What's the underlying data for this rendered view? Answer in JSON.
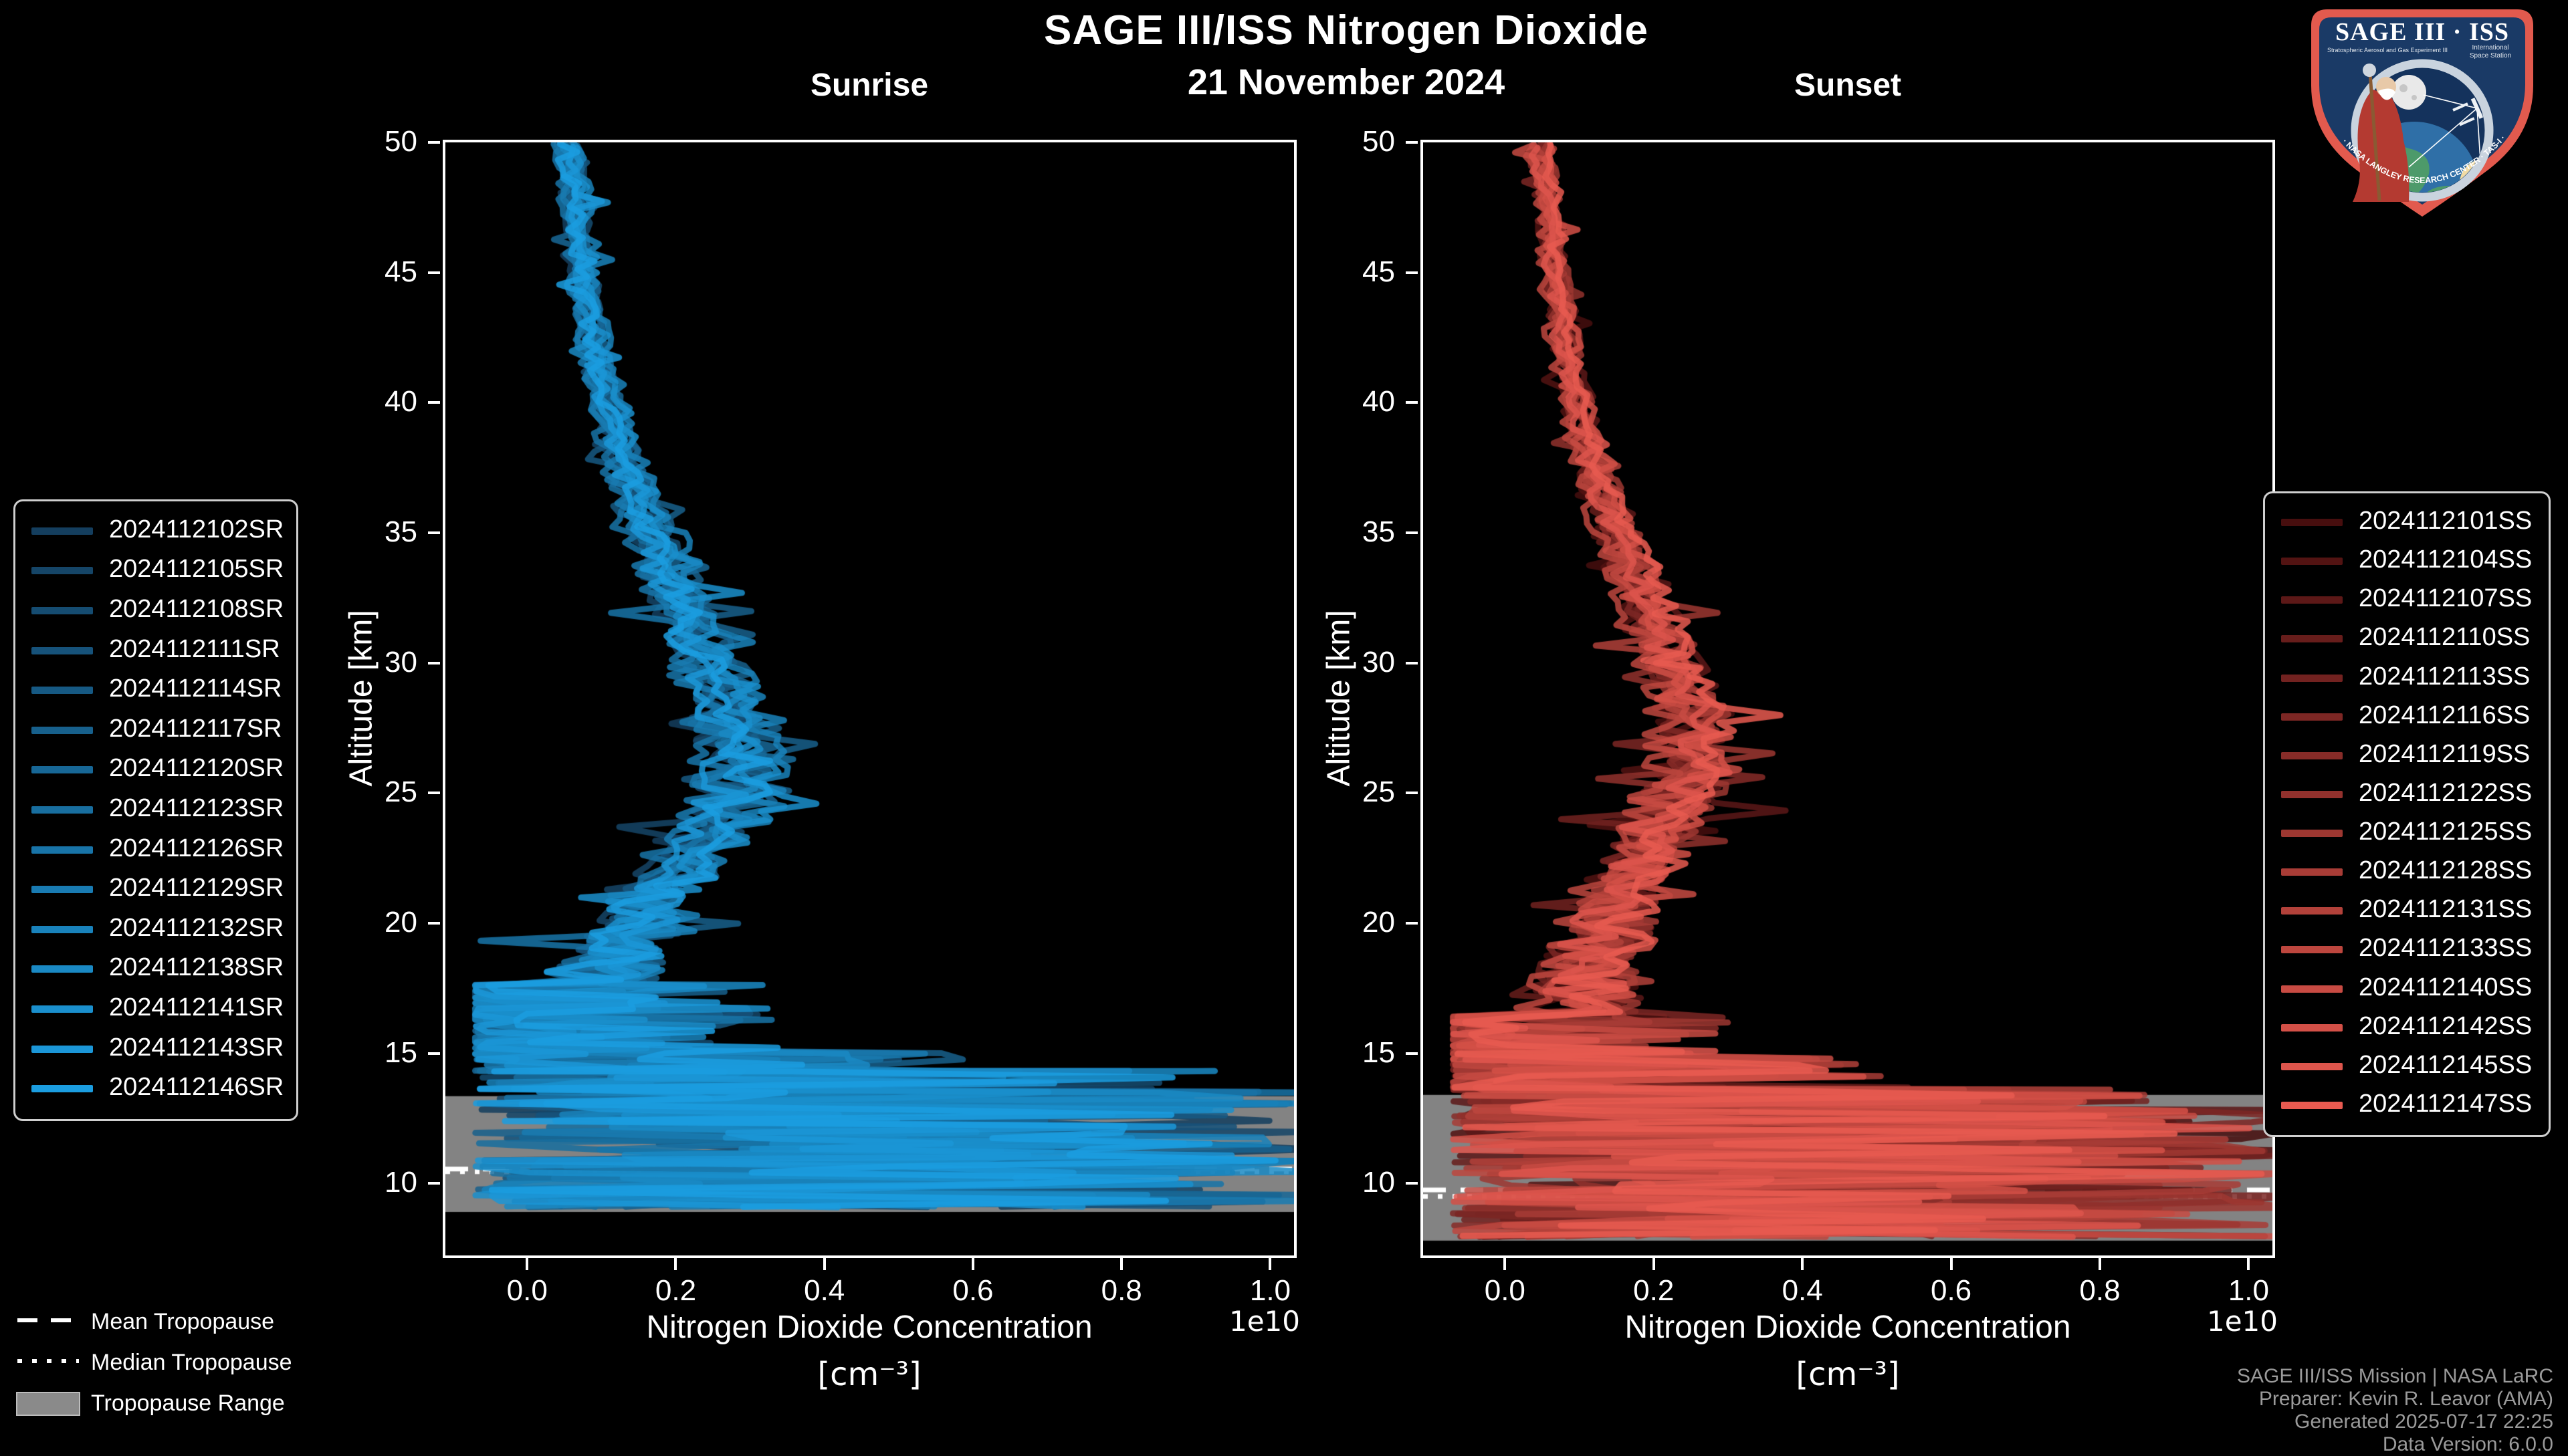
{
  "title": "SAGE III/ISS Nitrogen Dioxide",
  "date": "21 November 2024",
  "logo": {
    "title": "SAGE III · ISS",
    "subtitle_left": "Stratospheric Aerosol and Gas Experiment III",
    "subtitle_right_1": "International",
    "subtitle_right_2": "Space Station",
    "ring_text": "BALL · NASA LANGLEY RESEARCH CENTER · TAS-I · ESA"
  },
  "axes": {
    "xlabel": "Nitrogen Dioxide Concentration",
    "xunit": "[cm⁻³]",
    "offset_label": "1e10",
    "ylabel": "Altitude [km]",
    "xticks": [
      0.0,
      0.2,
      0.4,
      0.6,
      0.8,
      1.0
    ],
    "xtick_labels": [
      "0.0",
      "0.2",
      "0.4",
      "0.6",
      "0.8",
      "1.0"
    ],
    "yticks": [
      10,
      15,
      20,
      25,
      30,
      35,
      40,
      45,
      50
    ],
    "xlim": [
      -0.11,
      1.032
    ],
    "ylim": [
      7.23,
      50
    ],
    "grid": false
  },
  "tropopause_legend": [
    {
      "label": "Mean Tropopause",
      "style": "dashed"
    },
    {
      "label": "Median Tropopause",
      "style": "dotted"
    },
    {
      "label": "Tropopause Range",
      "style": "patch"
    }
  ],
  "attribution": [
    "SAGE III/ISS Mission | NASA LaRC",
    "Preparer: Kevin R. Leavor (AMA)",
    "Generated 2025-07-17 22:25",
    "Data Version: 6.0.0"
  ],
  "colors": {
    "background": "#000000",
    "spine": "#ffffff",
    "tropopause_band": "#838383",
    "tropopause_line": "#ffffff",
    "attribution_text": "#9a9a9a",
    "logo_border": "#e25a4e",
    "logo_field": "#1a3a66"
  },
  "chart_data": [
    {
      "type": "line",
      "title": "Sunrise",
      "legend_position": "left",
      "color_start": "#143e5e",
      "color_end": "#1b9de0",
      "series": [
        "2024112102SR",
        "2024112105SR",
        "2024112108SR",
        "2024112111SR",
        "2024112114SR",
        "2024112117SR",
        "2024112120SR",
        "2024112123SR",
        "2024112126SR",
        "2024112129SR",
        "2024112132SR",
        "2024112138SR",
        "2024112141SR",
        "2024112143SR",
        "2024112146SR"
      ],
      "mean_profile": {
        "altitude_km": [
          50,
          48,
          46,
          44,
          42,
          40,
          38,
          36,
          34,
          32,
          30,
          29,
          28,
          27,
          26,
          25,
          24,
          23,
          22,
          21,
          20,
          19,
          18,
          17.6
        ],
        "concentration_1e10": [
          0.055,
          0.062,
          0.068,
          0.078,
          0.09,
          0.105,
          0.125,
          0.15,
          0.18,
          0.21,
          0.24,
          0.255,
          0.27,
          0.285,
          0.29,
          0.285,
          0.26,
          0.23,
          0.2,
          0.17,
          0.15,
          0.125,
          0.105,
          0.1
        ]
      },
      "chaos_bands": [
        [
          17.6,
          15.2,
          0.34,
          3.0
        ],
        [
          15.2,
          14.3,
          0.6,
          2.2
        ],
        [
          14.3,
          13.5,
          0.95,
          1.8
        ],
        [
          13.5,
          8.9,
          1.07,
          1.25
        ]
      ],
      "tropopause": {
        "mean_km": 10.55,
        "median_km": 10.45,
        "range_km": [
          8.9,
          13.35
        ]
      }
    },
    {
      "type": "line",
      "title": "Sunset",
      "legend_position": "right",
      "color_start": "#470e0e",
      "color_end": "#e85a50",
      "series": [
        "2024112101SS",
        "2024112104SS",
        "2024112107SS",
        "2024112110SS",
        "2024112113SS",
        "2024112116SS",
        "2024112119SS",
        "2024112122SS",
        "2024112125SS",
        "2024112128SS",
        "2024112131SS",
        "2024112133SS",
        "2024112140SS",
        "2024112142SS",
        "2024112145SS",
        "2024112147SS"
      ],
      "mean_profile": {
        "altitude_km": [
          50,
          48,
          46,
          44,
          42,
          40,
          38,
          36,
          34,
          32,
          30,
          29,
          28,
          27,
          26,
          25,
          24,
          23,
          22,
          21,
          20,
          19,
          18,
          17,
          16.4
        ],
        "concentration_1e10": [
          0.05,
          0.058,
          0.065,
          0.075,
          0.085,
          0.1,
          0.115,
          0.14,
          0.17,
          0.2,
          0.23,
          0.245,
          0.255,
          0.26,
          0.255,
          0.245,
          0.225,
          0.2,
          0.18,
          0.16,
          0.145,
          0.13,
          0.115,
          0.105,
          0.1
        ]
      },
      "chaos_bands": [
        [
          16.4,
          15.0,
          0.3,
          3.0
        ],
        [
          15.0,
          13.6,
          0.55,
          2.4
        ],
        [
          13.6,
          12.8,
          0.9,
          1.6
        ],
        [
          12.8,
          7.9,
          1.07,
          1.35
        ]
      ],
      "tropopause": {
        "mean_km": 9.75,
        "median_km": 9.5,
        "range_km": [
          7.8,
          13.4
        ]
      }
    }
  ]
}
